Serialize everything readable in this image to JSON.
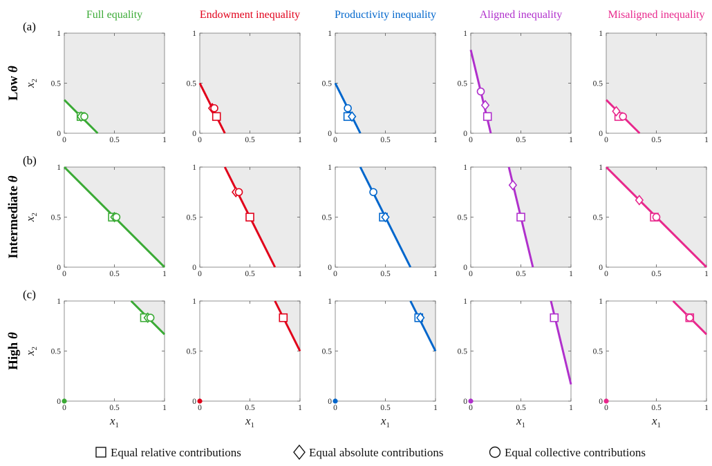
{
  "columns": [
    {
      "title": "Full equality",
      "color": "#3aaa35"
    },
    {
      "title": "Endowment inequality",
      "color": "#e1001a"
    },
    {
      "title": "Productivity inequality",
      "color": "#0066cc"
    },
    {
      "title": "Aligned inequality",
      "color": "#b030cc"
    },
    {
      "title": "Misaligned inequality",
      "color": "#e8288c"
    }
  ],
  "rows": [
    {
      "letter": "(a)",
      "label": "Low θ"
    },
    {
      "letter": "(b)",
      "label": "Intermediate θ"
    },
    {
      "letter": "(c)",
      "label": "High θ"
    }
  ],
  "axes": {
    "xlabel": "x",
    "xlabel_sub": "1",
    "ylabel": "x",
    "ylabel_sub": "2",
    "xlim": [
      0,
      1
    ],
    "ylim": [
      0,
      1
    ],
    "ticks": [
      "0",
      "0.5",
      "1"
    ],
    "region_color": "#ebebeb"
  },
  "legend": [
    {
      "symbol": "square",
      "label": "Equal relative contributions"
    },
    {
      "symbol": "diamond",
      "label": "Equal absolute contributions"
    },
    {
      "symbol": "circle",
      "label": "Equal collective contributions"
    }
  ],
  "chart_data": [
    {
      "type": "line",
      "row": 0,
      "col": 0,
      "line": [
        [
          0,
          0.333
        ],
        [
          0.333,
          0
        ]
      ],
      "region_corner": [
        0,
        0
      ],
      "square": [
        0.167,
        0.167
      ],
      "diamond": [
        0.167,
        0.167
      ],
      "circle": [
        0.2,
        0.167
      ],
      "dot": null
    },
    {
      "type": "line",
      "row": 0,
      "col": 1,
      "line": [
        [
          0,
          0.5
        ],
        [
          0.25,
          0
        ]
      ],
      "region_corner": [
        0,
        0
      ],
      "square": [
        0.167,
        0.167
      ],
      "diamond": [
        0.125,
        0.25
      ],
      "circle": [
        0.145,
        0.25
      ],
      "dot": null
    },
    {
      "type": "line",
      "row": 0,
      "col": 2,
      "line": [
        [
          0,
          0.5
        ],
        [
          0.25,
          0
        ]
      ],
      "region_corner": [
        0,
        0
      ],
      "square": [
        0.125,
        0.167
      ],
      "diamond": [
        0.167,
        0.167
      ],
      "circle": [
        0.125,
        0.25
      ],
      "dot": null
    },
    {
      "type": "line",
      "row": 0,
      "col": 3,
      "line": [
        [
          0,
          0.833
        ],
        [
          0.2,
          0
        ]
      ],
      "region_corner": [
        0,
        0
      ],
      "square": [
        0.167,
        0.167
      ],
      "diamond": [
        0.145,
        0.28
      ],
      "circle": [
        0.1,
        0.417
      ],
      "dot": null
    },
    {
      "type": "line",
      "row": 0,
      "col": 4,
      "line": [
        [
          0,
          0.333
        ],
        [
          0.333,
          0
        ]
      ],
      "region_corner": [
        0,
        0
      ],
      "square": [
        0.125,
        0.167
      ],
      "diamond": [
        0.1,
        0.22
      ],
      "circle": [
        0.167,
        0.167
      ],
      "dot": null
    },
    {
      "type": "line",
      "row": 1,
      "col": 0,
      "line": [
        [
          0,
          1
        ],
        [
          1,
          0
        ]
      ],
      "region_corner": [
        0,
        1
      ],
      "square": [
        0.48,
        0.5
      ],
      "diamond": [
        0.5,
        0.5
      ],
      "circle": [
        0.52,
        0.5
      ],
      "dot": null
    },
    {
      "type": "line",
      "row": 1,
      "col": 1,
      "line": [
        [
          0.25,
          1
        ],
        [
          0.75,
          0
        ]
      ],
      "region_corner": [
        0.25,
        1
      ],
      "square": [
        0.5,
        0.5
      ],
      "diamond": [
        0.36,
        0.75
      ],
      "circle": [
        0.39,
        0.75
      ],
      "dot": null
    },
    {
      "type": "line",
      "row": 1,
      "col": 2,
      "line": [
        [
          0.25,
          1
        ],
        [
          0.75,
          0
        ]
      ],
      "region_corner": [
        0.25,
        1
      ],
      "square": [
        0.48,
        0.5
      ],
      "diamond": [
        0.5,
        0.5
      ],
      "circle": [
        0.38,
        0.75
      ],
      "dot": null
    },
    {
      "type": "line",
      "row": 1,
      "col": 3,
      "line": [
        [
          0.38,
          1
        ],
        [
          0.62,
          0
        ]
      ],
      "region_corner": [
        0.38,
        1
      ],
      "square": [
        0.5,
        0.5
      ],
      "diamond": [
        0.42,
        0.82
      ],
      "circle": null,
      "dot": null
    },
    {
      "type": "line",
      "row": 1,
      "col": 4,
      "line": [
        [
          0,
          1
        ],
        [
          1,
          0
        ]
      ],
      "region_corner": [
        0,
        1
      ],
      "square": [
        0.48,
        0.5
      ],
      "diamond": [
        0.33,
        0.67
      ],
      "circle": [
        0.5,
        0.5
      ],
      "dot": null
    },
    {
      "type": "line",
      "row": 2,
      "col": 0,
      "line": [
        [
          0.667,
          1
        ],
        [
          1,
          0.667
        ]
      ],
      "region_corner": [
        0.667,
        1
      ],
      "square": [
        0.8,
        0.833
      ],
      "diamond": [
        0.833,
        0.833
      ],
      "circle": [
        0.86,
        0.833
      ],
      "dot": [
        0,
        0
      ]
    },
    {
      "type": "line",
      "row": 2,
      "col": 1,
      "line": [
        [
          0.75,
          1
        ],
        [
          1,
          0.5
        ]
      ],
      "region_corner": [
        0.75,
        1
      ],
      "square": [
        0.833,
        0.833
      ],
      "diamond": null,
      "circle": null,
      "dot": [
        0,
        0
      ]
    },
    {
      "type": "line",
      "row": 2,
      "col": 2,
      "line": [
        [
          0.75,
          1
        ],
        [
          1,
          0.5
        ]
      ],
      "region_corner": [
        0.75,
        1
      ],
      "square": [
        0.833,
        0.833
      ],
      "diamond": [
        0.85,
        0.833
      ],
      "circle": null,
      "dot": [
        0,
        0
      ]
    },
    {
      "type": "line",
      "row": 2,
      "col": 3,
      "line": [
        [
          0.8,
          1
        ],
        [
          1,
          0.167
        ]
      ],
      "region_corner": [
        0.8,
        1
      ],
      "square": [
        0.833,
        0.833
      ],
      "diamond": null,
      "circle": null,
      "dot": [
        0,
        0
      ]
    },
    {
      "type": "line",
      "row": 2,
      "col": 4,
      "line": [
        [
          0.667,
          1
        ],
        [
          1,
          0.667
        ]
      ],
      "region_corner": [
        0.667,
        1
      ],
      "square": [
        0.833,
        0.833
      ],
      "diamond": null,
      "circle": [
        0.833,
        0.833
      ],
      "dot": [
        0,
        0
      ]
    }
  ]
}
